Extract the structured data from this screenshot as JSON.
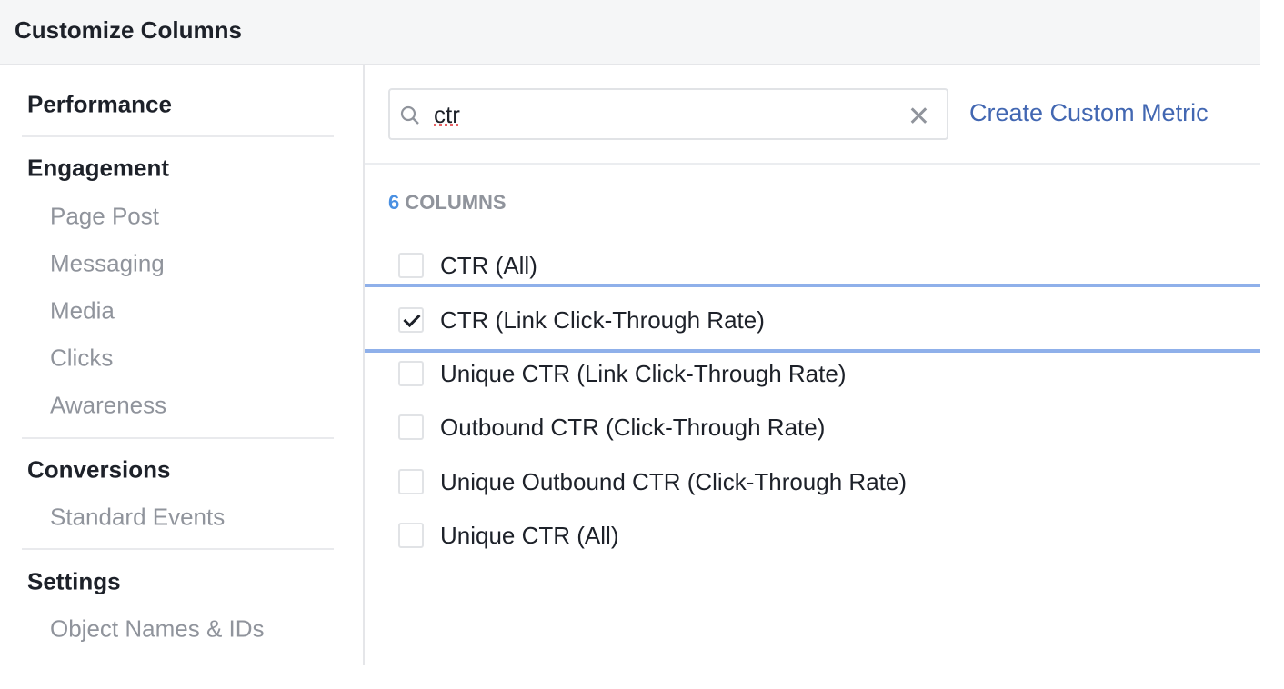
{
  "header": {
    "title": "Customize Columns"
  },
  "sidebar": {
    "sections": [
      {
        "label": "Performance",
        "items": []
      },
      {
        "label": "Engagement",
        "items": [
          "Page Post",
          "Messaging",
          "Media",
          "Clicks",
          "Awareness"
        ]
      },
      {
        "label": "Conversions",
        "items": [
          "Standard Events"
        ]
      },
      {
        "label": "Settings",
        "items": [
          "Object Names & IDs"
        ]
      }
    ]
  },
  "main": {
    "search": {
      "value": "ctr",
      "icon": "search-icon",
      "clear_icon": "close-icon"
    },
    "create_custom_metric": "Create Custom Metric",
    "count_number": "6",
    "count_label": "COLUMNS",
    "columns": [
      {
        "label": "CTR (All)",
        "checked": false
      },
      {
        "label": "CTR (Link Click-Through Rate)",
        "checked": true,
        "highlighted": true
      },
      {
        "label": "Unique CTR (Link Click-Through Rate)",
        "checked": false
      },
      {
        "label": "Outbound CTR (Click-Through Rate)",
        "checked": false
      },
      {
        "label": "Unique Outbound CTR (Click-Through Rate)",
        "checked": false
      },
      {
        "label": "Unique CTR (All)",
        "checked": false
      }
    ],
    "colors": {
      "link": "#4267b2",
      "highlight": "#8fb0ea",
      "count": "#4a90e2"
    }
  }
}
